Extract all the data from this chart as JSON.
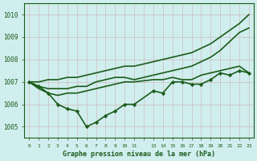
{
  "background_color": "#d0eeee",
  "grid_color": "#c8d8d8",
  "line_color": "#1a5c1a",
  "marker_color": "#1a5c1a",
  "xlabel": "Graphe pression niveau de la mer (hPa)",
  "ylim": [
    1004.5,
    1010.5
  ],
  "yticks": [
    1005,
    1006,
    1007,
    1008,
    1009,
    1010
  ],
  "xlim": [
    -0.5,
    23.5
  ],
  "series": [
    {
      "x": [
        0,
        1,
        2,
        3,
        4,
        5,
        6,
        7,
        8,
        9,
        10,
        11,
        13,
        14,
        15,
        16,
        17,
        18,
        19,
        20,
        21,
        22,
        23
      ],
      "y": [
        1007.0,
        1007.0,
        1007.1,
        1007.1,
        1007.2,
        1007.2,
        1007.3,
        1007.4,
        1007.5,
        1007.6,
        1007.7,
        1007.7,
        1007.9,
        1008.0,
        1008.1,
        1008.2,
        1008.3,
        1008.5,
        1008.7,
        1009.0,
        1009.3,
        1009.6,
        1010.0
      ],
      "has_markers": false,
      "linewidth": 1.2
    },
    {
      "x": [
        0,
        1,
        2,
        3,
        4,
        5,
        6,
        7,
        8,
        9,
        10,
        11,
        13,
        14,
        15,
        16,
        17,
        18,
        19,
        20,
        21,
        22,
        23
      ],
      "y": [
        1007.0,
        1006.8,
        1006.7,
        1006.7,
        1006.7,
        1006.8,
        1006.8,
        1007.0,
        1007.1,
        1007.2,
        1007.2,
        1007.1,
        1007.3,
        1007.4,
        1007.5,
        1007.6,
        1007.7,
        1007.9,
        1008.1,
        1008.4,
        1008.8,
        1009.2,
        1009.4
      ],
      "has_markers": false,
      "linewidth": 1.2
    },
    {
      "x": [
        0,
        1,
        2,
        3,
        4,
        5,
        6,
        7,
        8,
        9,
        10,
        11,
        13,
        14,
        15,
        16,
        17,
        18,
        19,
        20,
        21,
        22,
        23
      ],
      "y": [
        1007.0,
        1006.7,
        1006.5,
        1006.4,
        1006.5,
        1006.5,
        1006.6,
        1006.7,
        1006.8,
        1006.9,
        1007.0,
        1007.0,
        1007.1,
        1007.1,
        1007.2,
        1007.1,
        1007.1,
        1007.3,
        1007.4,
        1007.5,
        1007.6,
        1007.7,
        1007.4
      ],
      "has_markers": false,
      "linewidth": 1.2
    },
    {
      "x": [
        0,
        1,
        2,
        3,
        4,
        5,
        6,
        7,
        8,
        9,
        10,
        11,
        13,
        14,
        15,
        16,
        17,
        18,
        19,
        20,
        21,
        22,
        23
      ],
      "y": [
        1007.0,
        1006.8,
        1006.5,
        1006.0,
        1005.8,
        1005.7,
        1005.0,
        1005.2,
        1005.5,
        1005.7,
        1006.0,
        1006.0,
        1006.6,
        1006.5,
        1007.0,
        1007.0,
        1006.9,
        1006.9,
        1007.1,
        1007.4,
        1007.3,
        1007.5,
        1007.4
      ],
      "has_markers": true,
      "linewidth": 1.2
    }
  ]
}
